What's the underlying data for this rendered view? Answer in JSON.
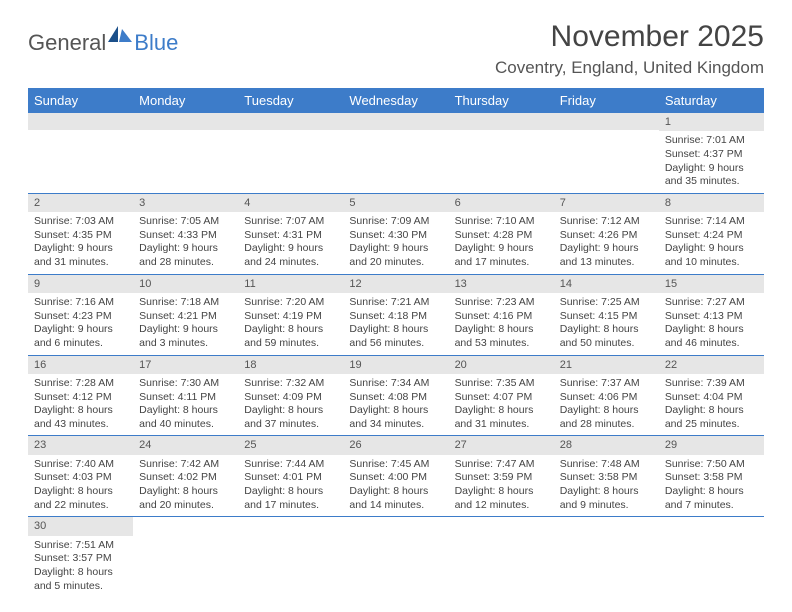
{
  "logo": {
    "general": "General",
    "blue": "Blue"
  },
  "title": "November 2025",
  "location": "Coventry, England, United Kingdom",
  "colors": {
    "header_bg": "#3d7cc9",
    "header_text": "#ffffff",
    "daynum_bg": "#e6e6e6",
    "row_divider": "#3d7cc9",
    "text": "#444444",
    "title_text": "#444444"
  },
  "typography": {
    "title_fontsize": 30,
    "location_fontsize": 17,
    "dayheader_fontsize": 13,
    "cell_fontsize": 10.5
  },
  "layout": {
    "columns": 7,
    "rows": 6,
    "cell_min_height": 72
  },
  "day_headers": [
    "Sunday",
    "Monday",
    "Tuesday",
    "Wednesday",
    "Thursday",
    "Friday",
    "Saturday"
  ],
  "weeks": [
    [
      {
        "blank": true
      },
      {
        "blank": true
      },
      {
        "blank": true
      },
      {
        "blank": true
      },
      {
        "blank": true
      },
      {
        "blank": true
      },
      {
        "n": "1",
        "sunrise": "Sunrise: 7:01 AM",
        "sunset": "Sunset: 4:37 PM",
        "dl1": "Daylight: 9 hours",
        "dl2": "and 35 minutes."
      }
    ],
    [
      {
        "n": "2",
        "sunrise": "Sunrise: 7:03 AM",
        "sunset": "Sunset: 4:35 PM",
        "dl1": "Daylight: 9 hours",
        "dl2": "and 31 minutes."
      },
      {
        "n": "3",
        "sunrise": "Sunrise: 7:05 AM",
        "sunset": "Sunset: 4:33 PM",
        "dl1": "Daylight: 9 hours",
        "dl2": "and 28 minutes."
      },
      {
        "n": "4",
        "sunrise": "Sunrise: 7:07 AM",
        "sunset": "Sunset: 4:31 PM",
        "dl1": "Daylight: 9 hours",
        "dl2": "and 24 minutes."
      },
      {
        "n": "5",
        "sunrise": "Sunrise: 7:09 AM",
        "sunset": "Sunset: 4:30 PM",
        "dl1": "Daylight: 9 hours",
        "dl2": "and 20 minutes."
      },
      {
        "n": "6",
        "sunrise": "Sunrise: 7:10 AM",
        "sunset": "Sunset: 4:28 PM",
        "dl1": "Daylight: 9 hours",
        "dl2": "and 17 minutes."
      },
      {
        "n": "7",
        "sunrise": "Sunrise: 7:12 AM",
        "sunset": "Sunset: 4:26 PM",
        "dl1": "Daylight: 9 hours",
        "dl2": "and 13 minutes."
      },
      {
        "n": "8",
        "sunrise": "Sunrise: 7:14 AM",
        "sunset": "Sunset: 4:24 PM",
        "dl1": "Daylight: 9 hours",
        "dl2": "and 10 minutes."
      }
    ],
    [
      {
        "n": "9",
        "sunrise": "Sunrise: 7:16 AM",
        "sunset": "Sunset: 4:23 PM",
        "dl1": "Daylight: 9 hours",
        "dl2": "and 6 minutes."
      },
      {
        "n": "10",
        "sunrise": "Sunrise: 7:18 AM",
        "sunset": "Sunset: 4:21 PM",
        "dl1": "Daylight: 9 hours",
        "dl2": "and 3 minutes."
      },
      {
        "n": "11",
        "sunrise": "Sunrise: 7:20 AM",
        "sunset": "Sunset: 4:19 PM",
        "dl1": "Daylight: 8 hours",
        "dl2": "and 59 minutes."
      },
      {
        "n": "12",
        "sunrise": "Sunrise: 7:21 AM",
        "sunset": "Sunset: 4:18 PM",
        "dl1": "Daylight: 8 hours",
        "dl2": "and 56 minutes."
      },
      {
        "n": "13",
        "sunrise": "Sunrise: 7:23 AM",
        "sunset": "Sunset: 4:16 PM",
        "dl1": "Daylight: 8 hours",
        "dl2": "and 53 minutes."
      },
      {
        "n": "14",
        "sunrise": "Sunrise: 7:25 AM",
        "sunset": "Sunset: 4:15 PM",
        "dl1": "Daylight: 8 hours",
        "dl2": "and 50 minutes."
      },
      {
        "n": "15",
        "sunrise": "Sunrise: 7:27 AM",
        "sunset": "Sunset: 4:13 PM",
        "dl1": "Daylight: 8 hours",
        "dl2": "and 46 minutes."
      }
    ],
    [
      {
        "n": "16",
        "sunrise": "Sunrise: 7:28 AM",
        "sunset": "Sunset: 4:12 PM",
        "dl1": "Daylight: 8 hours",
        "dl2": "and 43 minutes."
      },
      {
        "n": "17",
        "sunrise": "Sunrise: 7:30 AM",
        "sunset": "Sunset: 4:11 PM",
        "dl1": "Daylight: 8 hours",
        "dl2": "and 40 minutes."
      },
      {
        "n": "18",
        "sunrise": "Sunrise: 7:32 AM",
        "sunset": "Sunset: 4:09 PM",
        "dl1": "Daylight: 8 hours",
        "dl2": "and 37 minutes."
      },
      {
        "n": "19",
        "sunrise": "Sunrise: 7:34 AM",
        "sunset": "Sunset: 4:08 PM",
        "dl1": "Daylight: 8 hours",
        "dl2": "and 34 minutes."
      },
      {
        "n": "20",
        "sunrise": "Sunrise: 7:35 AM",
        "sunset": "Sunset: 4:07 PM",
        "dl1": "Daylight: 8 hours",
        "dl2": "and 31 minutes."
      },
      {
        "n": "21",
        "sunrise": "Sunrise: 7:37 AM",
        "sunset": "Sunset: 4:06 PM",
        "dl1": "Daylight: 8 hours",
        "dl2": "and 28 minutes."
      },
      {
        "n": "22",
        "sunrise": "Sunrise: 7:39 AM",
        "sunset": "Sunset: 4:04 PM",
        "dl1": "Daylight: 8 hours",
        "dl2": "and 25 minutes."
      }
    ],
    [
      {
        "n": "23",
        "sunrise": "Sunrise: 7:40 AM",
        "sunset": "Sunset: 4:03 PM",
        "dl1": "Daylight: 8 hours",
        "dl2": "and 22 minutes."
      },
      {
        "n": "24",
        "sunrise": "Sunrise: 7:42 AM",
        "sunset": "Sunset: 4:02 PM",
        "dl1": "Daylight: 8 hours",
        "dl2": "and 20 minutes."
      },
      {
        "n": "25",
        "sunrise": "Sunrise: 7:44 AM",
        "sunset": "Sunset: 4:01 PM",
        "dl1": "Daylight: 8 hours",
        "dl2": "and 17 minutes."
      },
      {
        "n": "26",
        "sunrise": "Sunrise: 7:45 AM",
        "sunset": "Sunset: 4:00 PM",
        "dl1": "Daylight: 8 hours",
        "dl2": "and 14 minutes."
      },
      {
        "n": "27",
        "sunrise": "Sunrise: 7:47 AM",
        "sunset": "Sunset: 3:59 PM",
        "dl1": "Daylight: 8 hours",
        "dl2": "and 12 minutes."
      },
      {
        "n": "28",
        "sunrise": "Sunrise: 7:48 AM",
        "sunset": "Sunset: 3:58 PM",
        "dl1": "Daylight: 8 hours",
        "dl2": "and 9 minutes."
      },
      {
        "n": "29",
        "sunrise": "Sunrise: 7:50 AM",
        "sunset": "Sunset: 3:58 PM",
        "dl1": "Daylight: 8 hours",
        "dl2": "and 7 minutes."
      }
    ],
    [
      {
        "n": "30",
        "sunrise": "Sunrise: 7:51 AM",
        "sunset": "Sunset: 3:57 PM",
        "dl1": "Daylight: 8 hours",
        "dl2": "and 5 minutes."
      },
      {
        "blank": true
      },
      {
        "blank": true
      },
      {
        "blank": true
      },
      {
        "blank": true
      },
      {
        "blank": true
      },
      {
        "blank": true
      }
    ]
  ]
}
